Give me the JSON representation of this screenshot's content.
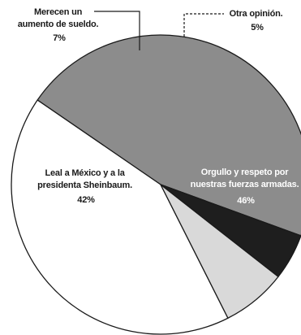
{
  "chart_data": {
    "type": "pie",
    "start_angle_deg": -20,
    "direction": "counterclockwise",
    "slices": [
      {
        "label_lines": [
          "Orgullo y respeto por",
          "nuestras fuerzas armadas."
        ],
        "pct_label": "46%",
        "value": 46,
        "color": "#8c8c8c",
        "text_color": "#ffffff"
      },
      {
        "label_lines": [
          "Leal a México y a la",
          "presidenta Sheinbaum."
        ],
        "pct_label": "42%",
        "value": 42,
        "color": "#ffffff",
        "text_color": "#1a1a1a"
      },
      {
        "label_lines": [
          "Merecen un",
          "aumento de sueldo."
        ],
        "pct_label": "7%",
        "value": 7,
        "color": "#d9d9d9",
        "text_color": "#1a1a1a"
      },
      {
        "label_lines": [
          "Otra opinión."
        ],
        "pct_label": "5%",
        "value": 5,
        "color": "#1e1e1e",
        "text_color": "#1a1a1a"
      }
    ]
  }
}
